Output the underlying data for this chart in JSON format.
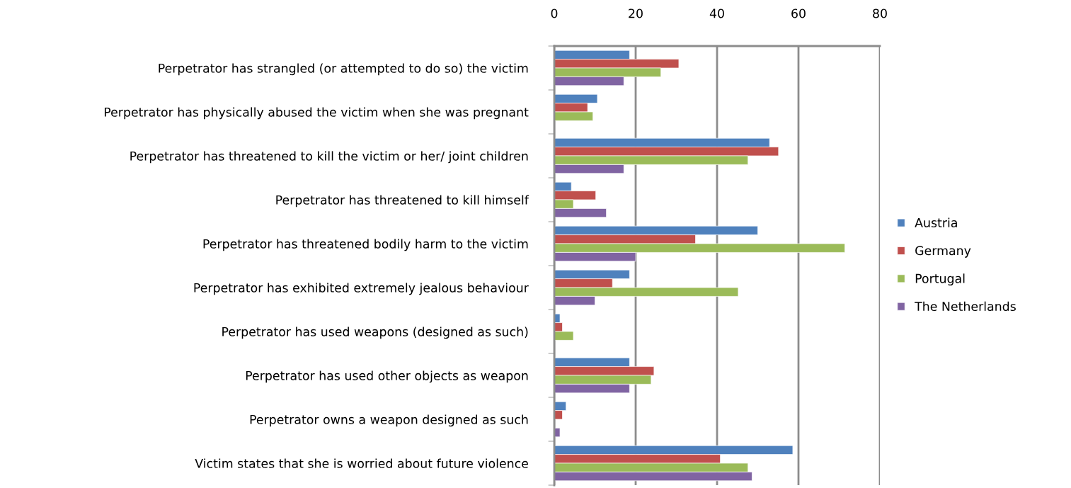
{
  "chart_data": {
    "type": "bar",
    "orientation": "horizontal",
    "categories": [
      "Perpetrator has strangled (or attempted to do so) the victim",
      "Perpetrator has physically abused the victim when she was pregnant",
      "Perpetrator has threatened to kill the victim or her/ joint children",
      "Perpetrator has threatened to kill himself",
      "Perpetrator has threatened bodily harm to the victim",
      "Perpetrator has exhibited extremely jealous behaviour",
      "Perpetrator has used weapons (designed as such)",
      "Perpetrator has used other objects as weapon",
      "Perpetrator owns a weapon designed as such",
      "Victim states that she is worried about future violence"
    ],
    "series": [
      {
        "name": "Austria",
        "color": "#4f81bd",
        "values": [
          18.5,
          10.6,
          52.9,
          4.2,
          50.0,
          18.5,
          1.4,
          18.5,
          2.9,
          58.6
        ]
      },
      {
        "name": "Germany",
        "color": "#c0504d",
        "values": [
          30.6,
          8.2,
          55.1,
          10.2,
          34.7,
          14.3,
          2.0,
          24.5,
          2.0,
          40.8
        ]
      },
      {
        "name": "Portugal",
        "color": "#9bbb59",
        "values": [
          26.2,
          9.5,
          47.6,
          4.7,
          71.4,
          45.2,
          4.7,
          23.8,
          null,
          47.6
        ]
      },
      {
        "name": "The Netherlands",
        "color": "#8064a2",
        "values": [
          17.1,
          null,
          17.1,
          12.8,
          20.0,
          10.0,
          null,
          18.5,
          1.4,
          48.6
        ]
      }
    ],
    "xlim": [
      0,
      80
    ],
    "xticks": [
      0,
      20,
      40,
      60,
      80
    ],
    "grid": "x",
    "legend": "right"
  }
}
